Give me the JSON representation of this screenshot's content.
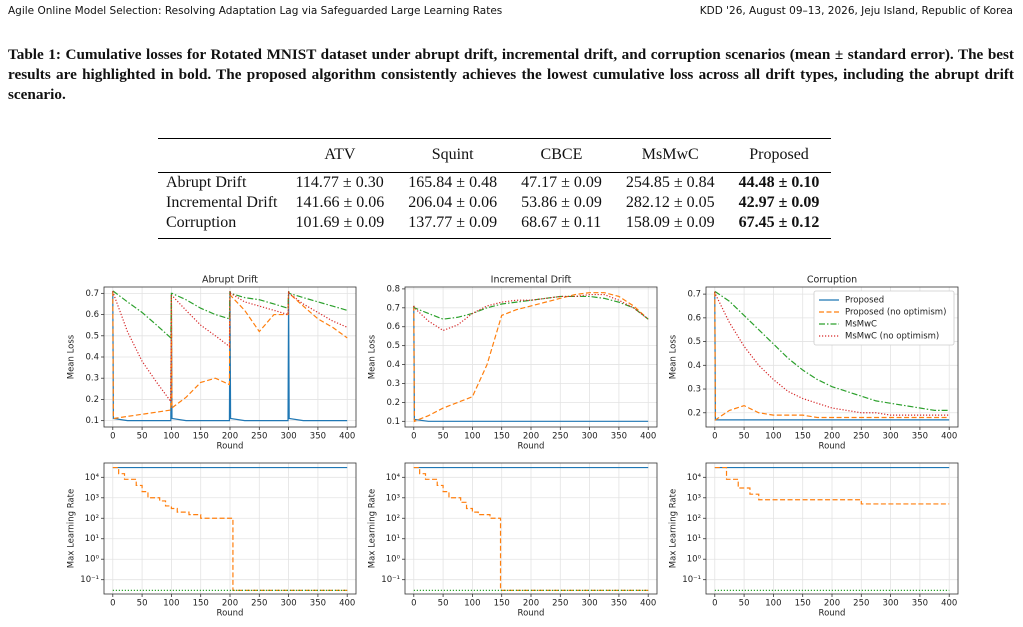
{
  "header": {
    "left": "Agile Online Model Selection: Resolving Adaptation Lag via Safeguarded Large Learning Rates",
    "right": "KDD '26, August 09–13, 2026, Jeju Island, Republic of Korea"
  },
  "caption": "Table 1: Cumulative losses for Rotated MNIST dataset under abrupt drift, incremental drift, and corruption scenarios (mean ± standard error). The best results are highlighted in bold. The proposed algorithm consistently achieves the lowest cumulative loss across all drift types, including the abrupt drift scenario.",
  "table": {
    "columns": [
      "ATV",
      "Squint",
      "CBCE",
      "MsMwC",
      "Proposed"
    ],
    "rows": [
      {
        "label": "Abrupt Drift",
        "cells": [
          "114.77 ± 0.30",
          "165.84 ± 0.48",
          "47.17 ± 0.09",
          "254.85 ± 0.84",
          "44.48 ± 0.10"
        ]
      },
      {
        "label": "Incremental Drift",
        "cells": [
          "141.66 ± 0.06",
          "206.04 ± 0.06",
          "53.86 ± 0.09",
          "282.12 ± 0.05",
          "42.97 ± 0.09"
        ]
      },
      {
        "label": "Corruption",
        "cells": [
          "101.69 ± 0.09",
          "137.77 ± 0.09",
          "68.67 ± 0.11",
          "158.09 ± 0.09",
          "67.45 ± 0.12"
        ]
      }
    ]
  },
  "chart_data": [
    {
      "type": "line",
      "title": "Abrupt Drift",
      "xlabel": "Round",
      "ylabel": "Mean Loss",
      "grid": true,
      "xlim": [
        -15,
        415
      ],
      "xticks": [
        0,
        50,
        100,
        150,
        200,
        250,
        300,
        350,
        400
      ],
      "ylim": [
        0.07,
        0.73
      ],
      "yticks": [
        0.1,
        0.2,
        0.3,
        0.4,
        0.5,
        0.6,
        0.7
      ],
      "x": [
        0,
        1,
        25,
        50,
        75,
        99,
        100,
        101,
        125,
        150,
        175,
        199,
        200,
        201,
        225,
        250,
        275,
        299,
        300,
        301,
        325,
        350,
        375,
        400
      ],
      "series": [
        {
          "color": "#1f77b4",
          "linestyle": "solid",
          "values": [
            0.71,
            0.11,
            0.1,
            0.1,
            0.1,
            0.1,
            0.69,
            0.11,
            0.1,
            0.1,
            0.1,
            0.1,
            0.71,
            0.11,
            0.1,
            0.1,
            0.1,
            0.1,
            0.7,
            0.11,
            0.1,
            0.1,
            0.1,
            0.1
          ]
        },
        {
          "color": "#ff7f0e",
          "linestyle": "dashed",
          "values": [
            0.71,
            0.11,
            0.12,
            0.13,
            0.14,
            0.15,
            0.69,
            0.16,
            0.21,
            0.28,
            0.3,
            0.27,
            0.71,
            0.69,
            0.62,
            0.52,
            0.6,
            0.6,
            0.71,
            0.7,
            0.64,
            0.58,
            0.54,
            0.49
          ]
        },
        {
          "color": "#2ca02c",
          "linestyle": "dashdot",
          "values": [
            0.71,
            0.71,
            0.66,
            0.61,
            0.55,
            0.49,
            0.7,
            0.7,
            0.67,
            0.63,
            0.6,
            0.58,
            0.71,
            0.7,
            0.68,
            0.67,
            0.65,
            0.63,
            0.71,
            0.7,
            0.68,
            0.66,
            0.64,
            0.62
          ]
        },
        {
          "color": "#d62728",
          "linestyle": "dotted",
          "values": [
            0.71,
            0.7,
            0.52,
            0.38,
            0.28,
            0.19,
            0.69,
            0.69,
            0.62,
            0.55,
            0.5,
            0.45,
            0.71,
            0.7,
            0.66,
            0.64,
            0.62,
            0.6,
            0.71,
            0.7,
            0.65,
            0.61,
            0.57,
            0.54
          ]
        }
      ]
    },
    {
      "type": "line",
      "title": "Incremental Drift",
      "xlabel": "Round",
      "ylabel": "Mean Loss",
      "grid": true,
      "xlim": [
        -15,
        415
      ],
      "xticks": [
        0,
        50,
        100,
        150,
        200,
        250,
        300,
        350,
        400
      ],
      "ylim": [
        0.07,
        0.81
      ],
      "yticks": [
        0.1,
        0.2,
        0.3,
        0.4,
        0.5,
        0.6,
        0.7,
        0.8
      ],
      "x": [
        0,
        1,
        25,
        50,
        75,
        100,
        125,
        150,
        175,
        200,
        225,
        250,
        275,
        300,
        325,
        350,
        375,
        400
      ],
      "series": [
        {
          "color": "#1f77b4",
          "linestyle": "solid",
          "values": [
            0.71,
            0.11,
            0.1,
            0.1,
            0.1,
            0.1,
            0.1,
            0.1,
            0.1,
            0.1,
            0.1,
            0.1,
            0.1,
            0.1,
            0.1,
            0.1,
            0.1,
            0.1
          ]
        },
        {
          "color": "#ff7f0e",
          "linestyle": "dashed",
          "values": [
            0.71,
            0.1,
            0.13,
            0.17,
            0.2,
            0.23,
            0.4,
            0.66,
            0.69,
            0.71,
            0.73,
            0.75,
            0.77,
            0.78,
            0.78,
            0.76,
            0.71,
            0.64
          ]
        },
        {
          "color": "#2ca02c",
          "linestyle": "dashdot",
          "values": [
            0.71,
            0.7,
            0.67,
            0.64,
            0.65,
            0.67,
            0.7,
            0.72,
            0.73,
            0.74,
            0.75,
            0.76,
            0.76,
            0.76,
            0.75,
            0.73,
            0.7,
            0.64
          ]
        },
        {
          "color": "#d62728",
          "linestyle": "dotted",
          "values": [
            0.71,
            0.7,
            0.63,
            0.58,
            0.61,
            0.67,
            0.71,
            0.73,
            0.74,
            0.74,
            0.75,
            0.76,
            0.76,
            0.77,
            0.77,
            0.74,
            0.7,
            0.64
          ]
        }
      ]
    },
    {
      "type": "line",
      "title": "Corruption",
      "xlabel": "Round",
      "ylabel": "Mean Loss",
      "grid": true,
      "legend": "upper right",
      "xlim": [
        -15,
        415
      ],
      "xticks": [
        0,
        50,
        100,
        150,
        200,
        250,
        300,
        350,
        400
      ],
      "ylim": [
        0.14,
        0.73
      ],
      "yticks": [
        0.2,
        0.3,
        0.4,
        0.5,
        0.6,
        0.7
      ],
      "x": [
        0,
        1,
        25,
        50,
        75,
        100,
        125,
        150,
        175,
        200,
        225,
        250,
        275,
        300,
        325,
        350,
        375,
        400
      ],
      "series": [
        {
          "name": "Proposed",
          "color": "#1f77b4",
          "linestyle": "solid",
          "values": [
            0.71,
            0.17,
            0.17,
            0.17,
            0.17,
            0.17,
            0.17,
            0.17,
            0.17,
            0.17,
            0.17,
            0.17,
            0.17,
            0.17,
            0.17,
            0.17,
            0.17,
            0.17
          ]
        },
        {
          "name": "Proposed (no optimism)",
          "color": "#ff7f0e",
          "linestyle": "dashed",
          "values": [
            0.71,
            0.17,
            0.21,
            0.23,
            0.2,
            0.19,
            0.19,
            0.19,
            0.18,
            0.18,
            0.18,
            0.18,
            0.18,
            0.18,
            0.18,
            0.18,
            0.18,
            0.18
          ]
        },
        {
          "name": "MsMwC",
          "color": "#2ca02c",
          "linestyle": "dashdot",
          "values": [
            0.71,
            0.71,
            0.67,
            0.61,
            0.55,
            0.49,
            0.43,
            0.38,
            0.34,
            0.31,
            0.29,
            0.27,
            0.25,
            0.24,
            0.23,
            0.22,
            0.21,
            0.21
          ]
        },
        {
          "name": "MsMwC (no optimism)",
          "color": "#d62728",
          "linestyle": "dotted",
          "values": [
            0.71,
            0.7,
            0.58,
            0.48,
            0.4,
            0.34,
            0.29,
            0.26,
            0.24,
            0.22,
            0.21,
            0.2,
            0.2,
            0.19,
            0.19,
            0.19,
            0.19,
            0.19
          ]
        }
      ]
    },
    {
      "type": "line",
      "xlabel": "Round",
      "ylabel": "Max Learning Rate",
      "grid": true,
      "yscale": "log",
      "drawstyle": "steps-post",
      "xlim": [
        -15,
        415
      ],
      "xticks": [
        0,
        50,
        100,
        150,
        200,
        250,
        300,
        350,
        400
      ],
      "ylim": [
        0.02,
        50000
      ],
      "yticks": [
        {
          "value": 0.1,
          "label": "10⁻¹"
        },
        {
          "value": 1,
          "label": "10⁰"
        },
        {
          "value": 10,
          "label": "10¹"
        },
        {
          "value": 100,
          "label": "10²"
        },
        {
          "value": 1000,
          "label": "10³"
        },
        {
          "value": 10000,
          "label": "10⁴"
        }
      ],
      "series": [
        {
          "color": "#1f77b4",
          "linestyle": "solid",
          "x": [
            0,
            400
          ],
          "values": [
            30000,
            30000
          ]
        },
        {
          "color": "#ff7f0e",
          "linestyle": "dashed",
          "x": [
            0,
            10,
            20,
            40,
            50,
            60,
            80,
            90,
            100,
            110,
            130,
            150,
            205,
            400
          ],
          "values": [
            30000,
            15000,
            8000,
            4000,
            2000,
            1000,
            700,
            400,
            300,
            200,
            150,
            100,
            0.03,
            0.03
          ]
        },
        {
          "color": "#2ca02c",
          "linestyle": "dotted",
          "x": [
            0,
            400
          ],
          "values": [
            0.03,
            0.03
          ]
        }
      ]
    },
    {
      "type": "line",
      "xlabel": "Round",
      "ylabel": "Max Learning Rate",
      "grid": true,
      "yscale": "log",
      "drawstyle": "steps-post",
      "xlim": [
        -15,
        415
      ],
      "xticks": [
        0,
        50,
        100,
        150,
        200,
        250,
        300,
        350,
        400
      ],
      "ylim": [
        0.02,
        50000
      ],
      "yticks": [
        {
          "value": 0.1,
          "label": "10⁻¹"
        },
        {
          "value": 1,
          "label": "10⁰"
        },
        {
          "value": 10,
          "label": "10¹"
        },
        {
          "value": 100,
          "label": "10²"
        },
        {
          "value": 1000,
          "label": "10³"
        },
        {
          "value": 10000,
          "label": "10⁴"
        }
      ],
      "series": [
        {
          "color": "#1f77b4",
          "linestyle": "solid",
          "x": [
            0,
            400
          ],
          "values": [
            30000,
            30000
          ]
        },
        {
          "color": "#ff7f0e",
          "linestyle": "dashed",
          "x": [
            0,
            10,
            20,
            40,
            50,
            60,
            80,
            90,
            100,
            110,
            130,
            148,
            400
          ],
          "values": [
            30000,
            15000,
            8000,
            4000,
            2000,
            1000,
            600,
            300,
            200,
            150,
            100,
            0.03,
            0.03
          ]
        },
        {
          "color": "#2ca02c",
          "linestyle": "dotted",
          "x": [
            0,
            400
          ],
          "values": [
            0.03,
            0.03
          ]
        }
      ]
    },
    {
      "type": "line",
      "xlabel": "Round",
      "ylabel": "Max Learning Rate",
      "grid": true,
      "yscale": "log",
      "drawstyle": "steps-post",
      "xlim": [
        -15,
        415
      ],
      "xticks": [
        0,
        50,
        100,
        150,
        200,
        250,
        300,
        350,
        400
      ],
      "ylim": [
        0.02,
        50000
      ],
      "yticks": [
        {
          "value": 0.1,
          "label": "10⁻¹"
        },
        {
          "value": 1,
          "label": "10⁰"
        },
        {
          "value": 10,
          "label": "10¹"
        },
        {
          "value": 100,
          "label": "10²"
        },
        {
          "value": 1000,
          "label": "10³"
        },
        {
          "value": 10000,
          "label": "10⁴"
        }
      ],
      "series": [
        {
          "color": "#1f77b4",
          "linestyle": "solid",
          "x": [
            0,
            400
          ],
          "values": [
            30000,
            30000
          ]
        },
        {
          "color": "#ff7f0e",
          "linestyle": "dashed",
          "x": [
            0,
            20,
            40,
            60,
            75,
            250,
            400
          ],
          "values": [
            30000,
            8000,
            3000,
            1500,
            800,
            500,
            500
          ]
        },
        {
          "color": "#2ca02c",
          "linestyle": "dotted",
          "x": [
            0,
            400
          ],
          "values": [
            0.03,
            0.03
          ]
        }
      ]
    }
  ]
}
